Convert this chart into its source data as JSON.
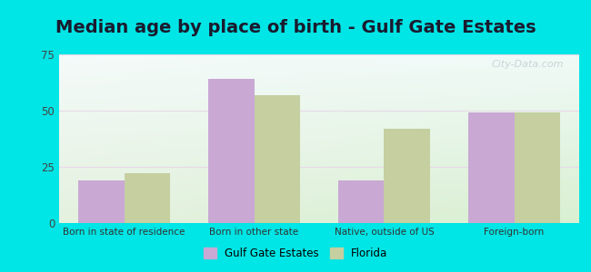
{
  "title": "Median age by place of birth - Gulf Gate Estates",
  "categories": [
    "Born in state of residence",
    "Born in other state",
    "Native, outside of US",
    "Foreign-born"
  ],
  "gulf_gate_values": [
    19,
    64,
    19,
    49
  ],
  "florida_values": [
    22,
    57,
    42,
    49
  ],
  "gulf_gate_color": "#c9a8d4",
  "florida_color": "#c5cfa0",
  "ylim": [
    0,
    75
  ],
  "yticks": [
    0,
    25,
    50,
    75
  ],
  "bg_top_right": "#f0f8f8",
  "bg_bottom_left": "#d8f0d0",
  "outer_background": "#00e5e5",
  "legend_gulf": "Gulf Gate Estates",
  "legend_florida": "Florida",
  "title_fontsize": 14,
  "bar_width": 0.35,
  "grid_color": "#e8f5e8",
  "watermark_color": "#c0d0d0"
}
